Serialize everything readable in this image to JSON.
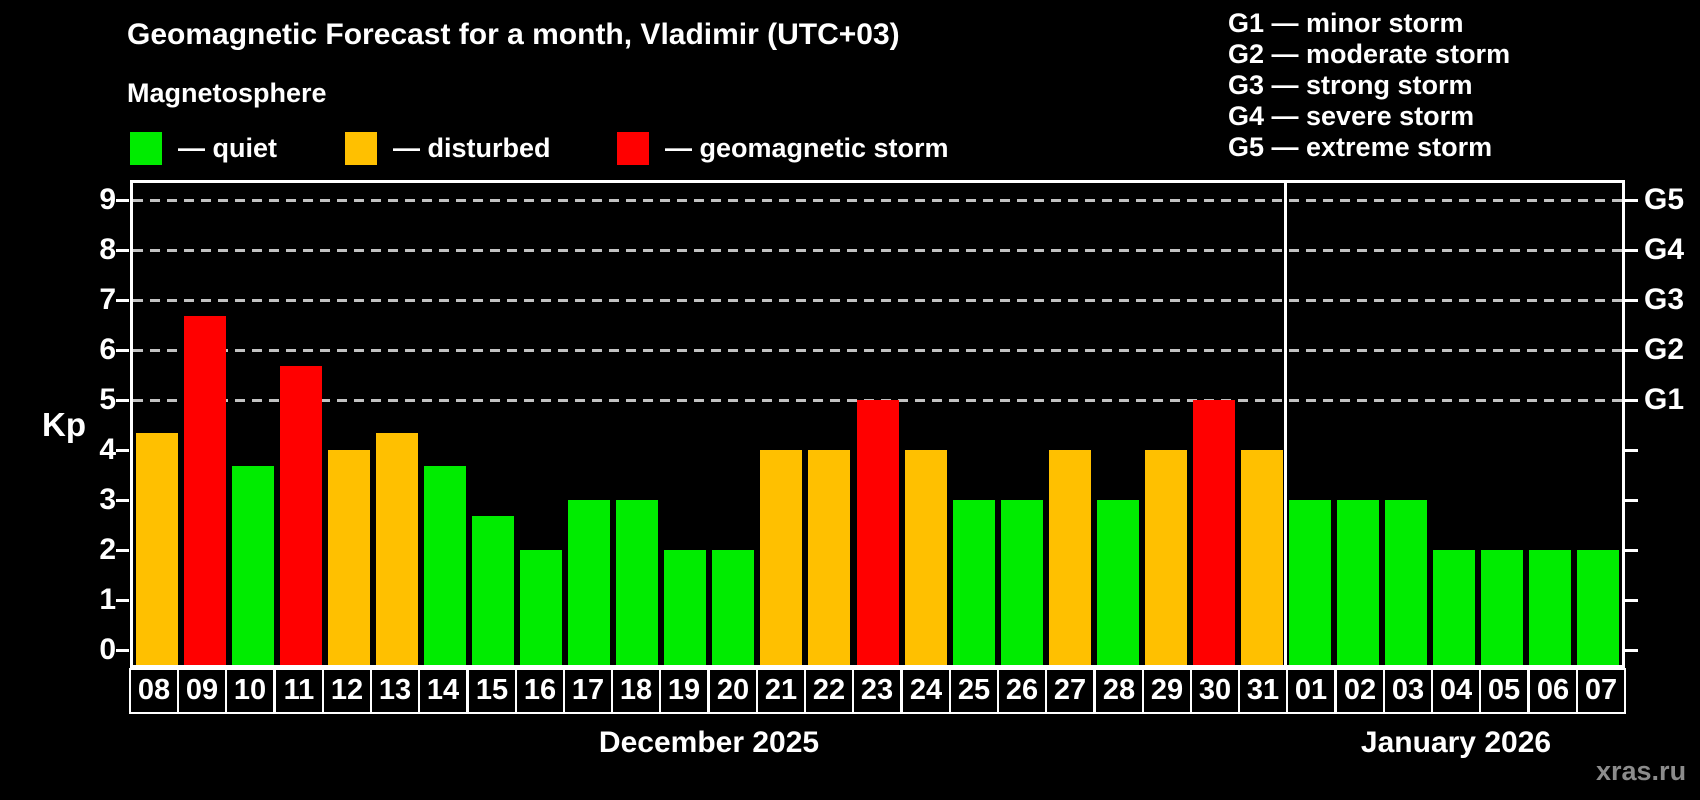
{
  "header": {
    "title": "Geomagnetic Forecast for a month, Vladimir (UTC+03)",
    "subtitle": "Magnetosphere"
  },
  "legend": {
    "items": [
      {
        "key": "quiet",
        "label": "— quiet",
        "color": "#00ec00"
      },
      {
        "key": "disturbed",
        "label": "— disturbed",
        "color": "#ffc000"
      },
      {
        "key": "storm",
        "label": "— geomagnetic storm",
        "color": "#ff0000"
      }
    ]
  },
  "g_scale_legend": {
    "lines": [
      "G1 — minor storm",
      "G2 — moderate storm",
      "G3 — strong storm",
      "G4 — severe storm",
      "G5 — extreme storm"
    ]
  },
  "colors": {
    "quiet": "#00ec00",
    "disturbed": "#ffc000",
    "storm": "#ff0000"
  },
  "watermark": "xras.ru",
  "chart_data": {
    "type": "bar",
    "ylabel": "Kp",
    "ylim": [
      0,
      9
    ],
    "yticks": [
      0,
      1,
      2,
      3,
      4,
      5,
      6,
      7,
      8,
      9
    ],
    "gridlines_at": [
      5,
      6,
      7,
      8,
      9
    ],
    "grid": "dashed horizontal lines at Kp 5-9 only",
    "legend_position": "top",
    "right_axis_labels": [
      {
        "kp": 5,
        "label": "G1"
      },
      {
        "kp": 6,
        "label": "G2"
      },
      {
        "kp": 7,
        "label": "G3"
      },
      {
        "kp": 8,
        "label": "G4"
      },
      {
        "kp": 9,
        "label": "G5"
      }
    ],
    "months": [
      {
        "label": "December 2025",
        "days": [
          {
            "date": "08",
            "kp": 4.33,
            "status": "disturbed"
          },
          {
            "date": "09",
            "kp": 6.67,
            "status": "storm"
          },
          {
            "date": "10",
            "kp": 3.67,
            "status": "quiet"
          },
          {
            "date": "11",
            "kp": 5.67,
            "status": "storm"
          },
          {
            "date": "12",
            "kp": 4,
            "status": "disturbed"
          },
          {
            "date": "13",
            "kp": 4.33,
            "status": "disturbed"
          },
          {
            "date": "14",
            "kp": 3.67,
            "status": "quiet"
          },
          {
            "date": "15",
            "kp": 2.67,
            "status": "quiet"
          },
          {
            "date": "16",
            "kp": 2,
            "status": "quiet"
          },
          {
            "date": "17",
            "kp": 3,
            "status": "quiet"
          },
          {
            "date": "18",
            "kp": 3,
            "status": "quiet"
          },
          {
            "date": "19",
            "kp": 2,
            "status": "quiet"
          },
          {
            "date": "20",
            "kp": 2,
            "status": "quiet"
          },
          {
            "date": "21",
            "kp": 4,
            "status": "disturbed"
          },
          {
            "date": "22",
            "kp": 4,
            "status": "disturbed"
          },
          {
            "date": "23",
            "kp": 5,
            "status": "storm"
          },
          {
            "date": "24",
            "kp": 4,
            "status": "disturbed"
          },
          {
            "date": "25",
            "kp": 3,
            "status": "quiet"
          },
          {
            "date": "26",
            "kp": 3,
            "status": "quiet"
          },
          {
            "date": "27",
            "kp": 4,
            "status": "disturbed"
          },
          {
            "date": "28",
            "kp": 3,
            "status": "quiet"
          },
          {
            "date": "29",
            "kp": 4,
            "status": "disturbed"
          },
          {
            "date": "30",
            "kp": 5,
            "status": "storm"
          },
          {
            "date": "31",
            "kp": 4,
            "status": "disturbed"
          }
        ]
      },
      {
        "label": "January 2026",
        "days": [
          {
            "date": "01",
            "kp": 3,
            "status": "quiet"
          },
          {
            "date": "02",
            "kp": 3,
            "status": "quiet"
          },
          {
            "date": "03",
            "kp": 3,
            "status": "quiet"
          },
          {
            "date": "04",
            "kp": 2,
            "status": "quiet"
          },
          {
            "date": "05",
            "kp": 2,
            "status": "quiet"
          },
          {
            "date": "06",
            "kp": 2,
            "status": "quiet"
          },
          {
            "date": "07",
            "kp": 2,
            "status": "quiet"
          }
        ]
      }
    ]
  }
}
